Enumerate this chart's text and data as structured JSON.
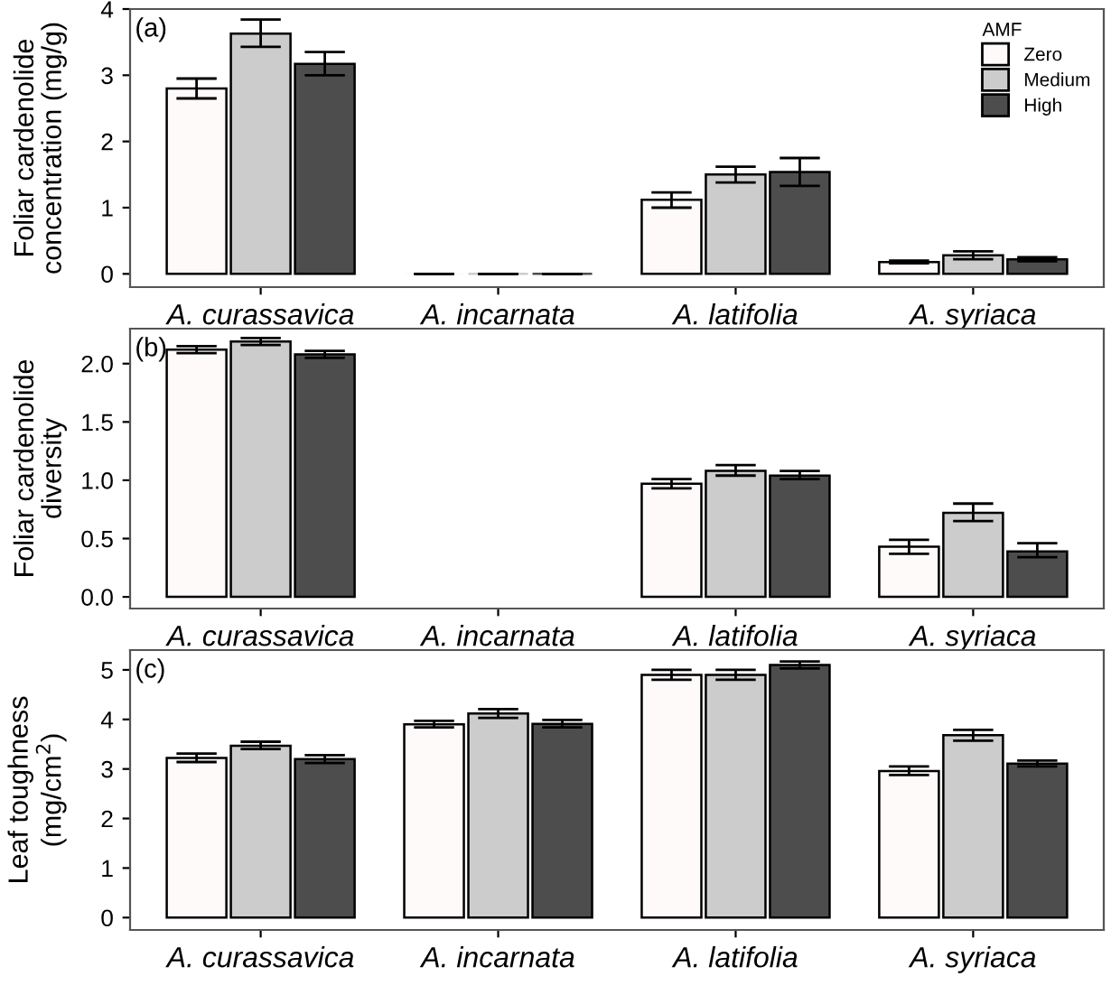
{
  "chart_data": [
    {
      "type": "bar",
      "ylabel": "Foliar cardenolide\nconcentration (mg/g)",
      "annotations": [
        "(a)"
      ],
      "legend_title": "AMF",
      "legend": "top right",
      "categories": [
        "A. curassavica",
        "A. incarnata",
        "A. latifolia",
        "A. syriaca"
      ],
      "ylim": [
        -0.2,
        4.0
      ],
      "yticks": [
        0,
        1,
        2,
        3,
        4
      ],
      "grid": false,
      "series": [
        {
          "name": "Zero",
          "color": "#fffafa",
          "values": [
            2.8,
            0,
            1.12,
            0.18
          ],
          "errors": [
            [
              2.65,
              2.95
            ],
            [
              0,
              0
            ],
            [
              1.0,
              1.23
            ],
            [
              0.16,
              0.2
            ]
          ]
        },
        {
          "name": "Medium",
          "color": "#cccccc",
          "values": [
            3.63,
            0,
            1.5,
            0.28
          ],
          "errors": [
            [
              3.43,
              3.84
            ],
            [
              0,
              0
            ],
            [
              1.38,
              1.62
            ],
            [
              0.22,
              0.34
            ]
          ]
        },
        {
          "name": "High",
          "color": "#4d4d4d",
          "values": [
            3.17,
            0,
            1.54,
            0.22
          ],
          "errors": [
            [
              3.0,
              3.35
            ],
            [
              0,
              0
            ],
            [
              1.33,
              1.75
            ],
            [
              0.19,
              0.25
            ]
          ]
        }
      ]
    },
    {
      "type": "bar",
      "ylabel": "Foliar cardenolide\ndiversity",
      "annotations": [
        "(b)"
      ],
      "legend": false,
      "categories": [
        "A. curassavica",
        "A. incarnata",
        "A. latifolia",
        "A. syriaca"
      ],
      "ylim": [
        -0.1,
        2.3
      ],
      "yticks": [
        {
          "value": 0,
          "label": "0.0"
        },
        0.5,
        {
          "value": 1,
          "label": "1.0"
        },
        1.5,
        {
          "value": 2,
          "label": "2.0"
        }
      ],
      "grid": false,
      "series": [
        {
          "color": "#fffafa",
          "values": [
            2.12,
            null,
            0.97,
            0.43
          ],
          "errors": [
            [
              2.09,
              2.15
            ],
            null,
            [
              0.93,
              1.01
            ],
            [
              0.37,
              0.49
            ]
          ]
        },
        {
          "color": "#cccccc",
          "values": [
            2.19,
            null,
            1.08,
            0.72
          ],
          "errors": [
            [
              2.16,
              2.22
            ],
            null,
            [
              1.04,
              1.13
            ],
            [
              0.65,
              0.8
            ]
          ]
        },
        {
          "color": "#4d4d4d",
          "values": [
            2.08,
            null,
            1.04,
            0.39
          ],
          "errors": [
            [
              2.05,
              2.11
            ],
            null,
            [
              1.01,
              1.08
            ],
            [
              0.34,
              0.46
            ]
          ]
        }
      ]
    },
    {
      "type": "bar",
      "ylabel": "Leaf toughness\n(mg/cm$^{2}$)",
      "annotations": [
        "(c)"
      ],
      "legend": false,
      "categories": [
        "A. curassavica",
        "A. incarnata",
        "A. latifolia",
        "A. syriaca"
      ],
      "ylim": [
        -0.25,
        5.4
      ],
      "yticks": [
        0,
        1,
        2,
        3,
        4,
        5
      ],
      "grid": false,
      "series": [
        {
          "color": "#fffafa",
          "values": [
            3.22,
            3.9,
            4.9,
            2.96
          ],
          "errors": [
            [
              3.14,
              3.31
            ],
            [
              3.84,
              3.97
            ],
            [
              4.8,
              5.0
            ],
            [
              2.88,
              3.05
            ]
          ]
        },
        {
          "color": "#cccccc",
          "values": [
            3.47,
            4.12,
            4.9,
            3.68
          ],
          "errors": [
            [
              3.4,
              3.55
            ],
            [
              4.03,
              4.21
            ],
            [
              4.8,
              5.0
            ],
            [
              3.57,
              3.79
            ]
          ]
        },
        {
          "color": "#4d4d4d",
          "values": [
            3.2,
            3.91,
            5.1,
            3.11
          ],
          "errors": [
            [
              3.12,
              3.28
            ],
            [
              3.84,
              3.99
            ],
            [
              5.03,
              5.17
            ],
            [
              3.05,
              3.17
            ]
          ]
        }
      ]
    }
  ]
}
